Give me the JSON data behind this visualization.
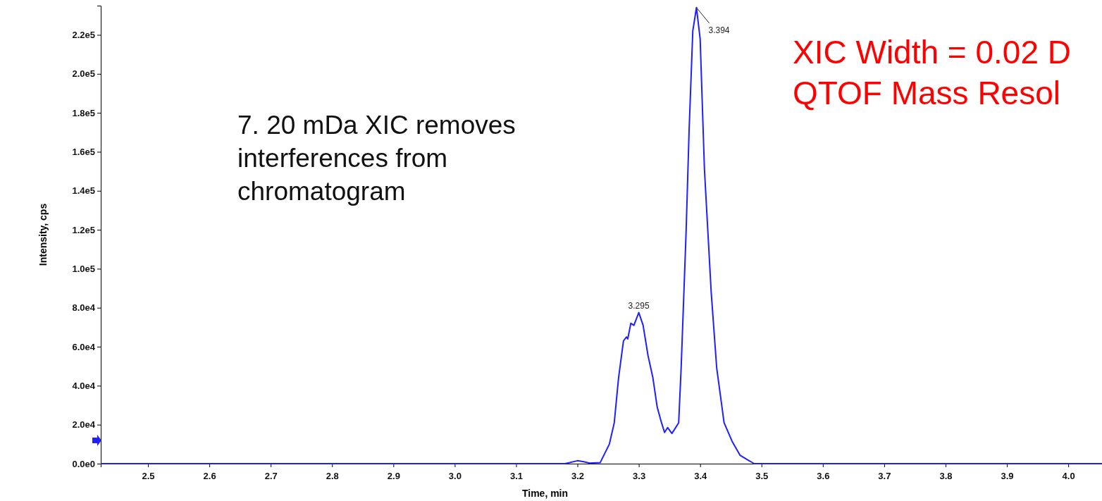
{
  "chart_data": {
    "type": "line",
    "xlabel": "Time, min",
    "ylabel": "Intensity, cps",
    "xlim": [
      2.423,
      4.055
    ],
    "xticks": [
      2.5,
      2.6,
      2.7,
      2.8,
      2.9,
      {
        "value": 3,
        "label": "3.0"
      },
      3.1,
      3.2,
      3.3,
      3.4,
      3.5,
      3.6,
      3.7,
      3.8,
      3.9,
      {
        "value": 4,
        "label": "4.0"
      }
    ],
    "ylim": [
      0,
      235000
    ],
    "yticks": [
      {
        "value": 0,
        "label": "0.0e0"
      },
      {
        "value": 20000,
        "label": "2.0e4"
      },
      {
        "value": 40000,
        "label": "4.0e4"
      },
      {
        "value": 60000,
        "label": "6.0e4"
      },
      {
        "value": 80000,
        "label": "8.0e4"
      },
      {
        "value": 100000,
        "label": "1.0e5"
      },
      {
        "value": 120000,
        "label": "1.2e5"
      },
      {
        "value": 140000,
        "label": "1.4e5"
      },
      {
        "value": 160000,
        "label": "1.6e5"
      },
      {
        "value": 180000,
        "label": "1.8e5"
      },
      {
        "value": 200000,
        "label": "2.0e5"
      },
      {
        "value": 220000,
        "label": "2.2e5"
      }
    ],
    "grid": false,
    "marker": "none",
    "line_style": "solid",
    "series": [
      {
        "color": "#1f1fff",
        "x": [
          2.423,
          3.18,
          3.2,
          3.21,
          3.22,
          3.237,
          3.252,
          3.26,
          3.267,
          3.275,
          3.28,
          3.282,
          3.287,
          3.292,
          3.3,
          3.307,
          3.315,
          3.323,
          3.33,
          3.337,
          3.342,
          3.347,
          3.354,
          3.365,
          3.369,
          3.377,
          3.382,
          3.388,
          3.394,
          3.4,
          3.407,
          3.418,
          3.427,
          3.439,
          3.452,
          3.465,
          3.477,
          3.488,
          4.055
        ],
        "values": [
          0,
          0,
          1500,
          1000,
          300,
          500,
          10000,
          21000,
          44000,
          63000,
          65000,
          64000,
          72000,
          71000,
          77500,
          71000,
          55500,
          44000,
          29000,
          21000,
          16000,
          18500,
          15500,
          21000,
          49000,
          118000,
          171000,
          222000,
          234000,
          218000,
          151000,
          88000,
          49000,
          21000,
          11500,
          4300,
          2000,
          0,
          0
        ]
      }
    ],
    "annotations": [
      {
        "text": "3.394",
        "x": 3.394,
        "y": 234000
      },
      {
        "text": "3.295",
        "x": 3.3,
        "y": 77500
      },
      "7. 20 mDa XIC removes interferences from chromatogram",
      "XIC Width = 0.02 D",
      "QTOF Mass Resol"
    ]
  }
}
